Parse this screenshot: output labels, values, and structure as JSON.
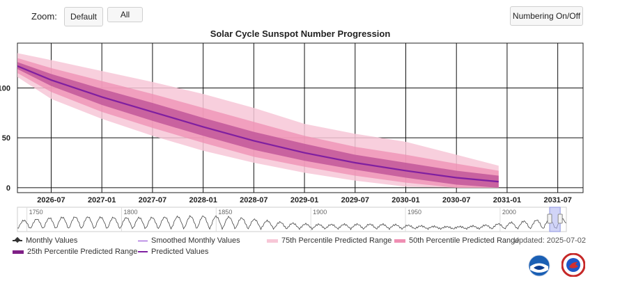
{
  "toolbar": {
    "zoom_label": "Zoom:",
    "default_label": "Default",
    "all_label": "All",
    "numbering_label": "Numbering On/Off"
  },
  "updated_text": "Updated: 2025-07-02",
  "colors": {
    "band75": "#f7c7d7",
    "band50": "#ef8fb3",
    "band25": "#c2579a",
    "predicted": "#7f1fa0",
    "navigator_selection": "#b3b8f2"
  },
  "legend": {
    "monthly": "Monthly Values",
    "smoothed": "Smoothed Monthly Values",
    "p75": "75th Percentile Predicted Range",
    "p50": "50th Percentile Predicted Range",
    "p25": "25th Percentile Predicted Range",
    "predicted": "Predicted Values"
  },
  "chart_data": {
    "type": "area",
    "title": "Solar Cycle Sunspot Number Progression",
    "xlabel": "",
    "ylabel": "",
    "x_ticks": [
      "2026-07",
      "2027-01",
      "2027-07",
      "2028-01",
      "2028-07",
      "2029-01",
      "2029-07",
      "2030-01",
      "2030-07",
      "2031-01",
      "2031-07"
    ],
    "y_ticks": [
      0,
      50,
      100
    ],
    "ylim": [
      -5,
      145
    ],
    "xlim": [
      "2026-03",
      "2031-10"
    ],
    "grid": true,
    "x": [
      "2026-03",
      "2026-07",
      "2027-01",
      "2027-07",
      "2028-01",
      "2028-07",
      "2029-01",
      "2029-07",
      "2030-01",
      "2030-07",
      "2030-12"
    ],
    "predicted": [
      122,
      108,
      91,
      76,
      61,
      47,
      35,
      25,
      17,
      10,
      6
    ],
    "p25": {
      "low": [
        119,
        102,
        83,
        67,
        52,
        38,
        27,
        18,
        10,
        3,
        0
      ],
      "high": [
        126,
        114,
        99,
        85,
        70,
        56,
        44,
        33,
        25,
        17,
        12
      ]
    },
    "p50": {
      "low": [
        115,
        96,
        76,
        60,
        45,
        31,
        21,
        12,
        5,
        0,
        0
      ],
      "high": [
        130,
        120,
        107,
        94,
        80,
        66,
        52,
        41,
        33,
        24,
        17
      ]
    },
    "p75": {
      "low": [
        111,
        89,
        69,
        52,
        37,
        25,
        15,
        7,
        1,
        0,
        0
      ],
      "high": [
        135,
        128,
        117,
        106,
        94,
        80,
        64,
        54,
        46,
        33,
        22
      ]
    },
    "navigator": {
      "x_ticks": [
        "1750",
        "1800",
        "1850",
        "1900",
        "1950",
        "2000"
      ],
      "range": [
        "2026-03",
        "2031-10"
      ]
    }
  }
}
